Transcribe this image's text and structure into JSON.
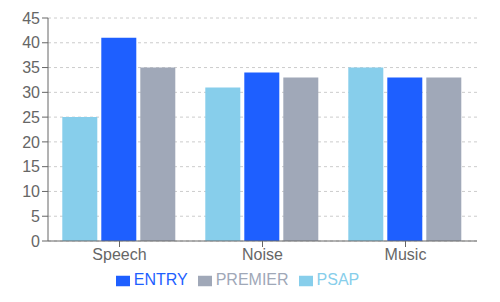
{
  "chart_data": {
    "type": "bar",
    "categories": [
      "Speech",
      "Noise",
      "Music"
    ],
    "series": [
      {
        "name": "PSAP",
        "color": "#87CEEB",
        "values": [
          25,
          31,
          35
        ]
      },
      {
        "name": "ENTRY",
        "color": "#1E5FFF",
        "values": [
          41,
          34,
          33
        ]
      },
      {
        "name": "PREMIER",
        "color": "#A0A8B8",
        "values": [
          35,
          33,
          33
        ]
      }
    ],
    "ylim": [
      0,
      45
    ],
    "yticks": [
      0,
      5,
      10,
      15,
      20,
      25,
      30,
      35,
      40,
      45
    ],
    "grid": true,
    "legend": "bottom"
  }
}
